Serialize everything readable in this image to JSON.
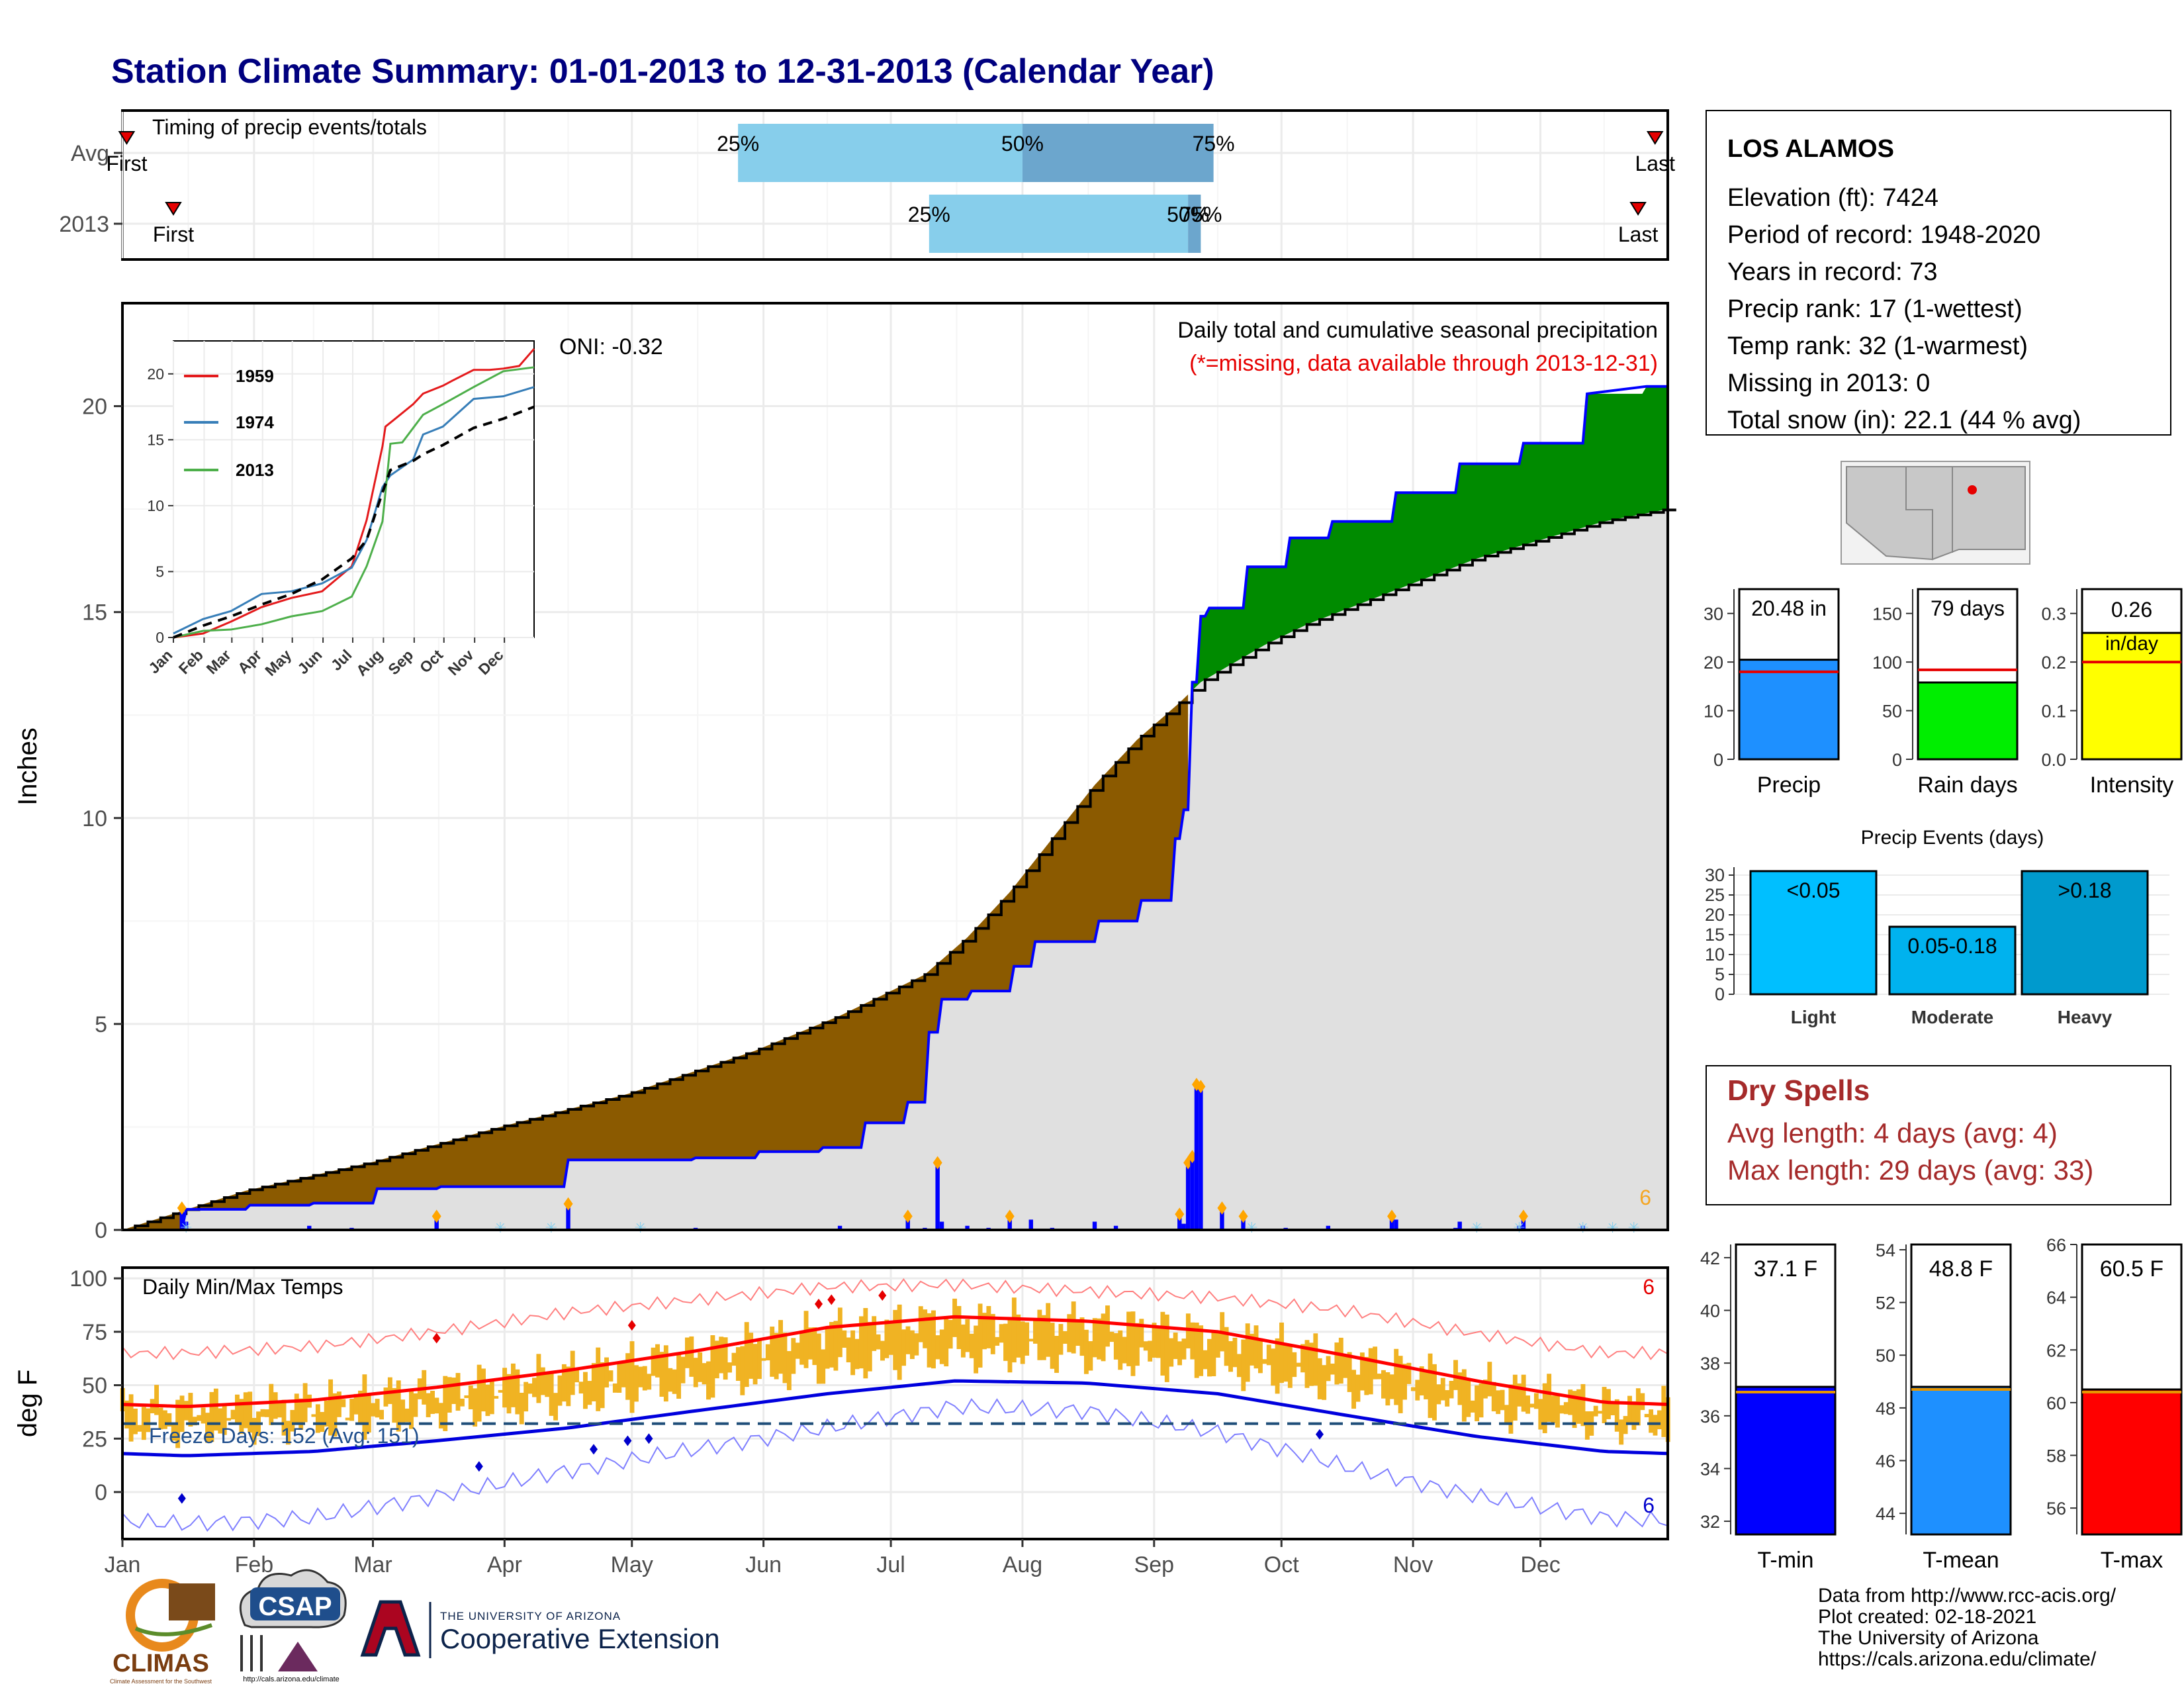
{
  "title": "Station Climate Summary: 01-01-2013 to 12-31-2013 (Calendar Year)",
  "months": [
    "Jan",
    "Feb",
    "Mar",
    "Apr",
    "May",
    "Jun",
    "Jul",
    "Aug",
    "Sep",
    "Oct",
    "Nov",
    "Dec"
  ],
  "timing": {
    "label": "Timing of precip events/totals",
    "rows": [
      "Avg",
      "2013"
    ],
    "first_label": "First",
    "last_label": "Last",
    "avg": {
      "first_doy": 2,
      "q25_doy": 146,
      "q50_doy": 213,
      "q75_doy": 258,
      "last_doy": 362
    },
    "y2013": {
      "first_doy": 13,
      "q25_doy": 191,
      "q50_doy": 252,
      "q75_doy": 255,
      "last_doy": 358
    },
    "q_labels": [
      "25%",
      "50%",
      "75%"
    ]
  },
  "precip_panel": {
    "ylabel": "Inches",
    "oni": "ONI: -0.32",
    "note1": "Daily total and cumulative seasonal precipitation",
    "note2": "(*=missing, data available through 2013-12-31)",
    "snow_count": "6",
    "yticks": [
      0,
      5,
      10,
      15,
      20
    ]
  },
  "inset": {
    "legend": [
      "1959",
      "1974",
      "2013"
    ],
    "legend_colors": [
      "#e41a1c",
      "#377eb8",
      "#4daf4a"
    ],
    "yticks": [
      0,
      5,
      10,
      15,
      20
    ]
  },
  "temp_panel": {
    "ylabel": "deg F",
    "label": "Daily Min/Max Temps",
    "freeze": "Freeze Days: 152 (Avg: 151)",
    "count_high": "6",
    "count_low": "6",
    "yticks": [
      0,
      25,
      50,
      75,
      100
    ]
  },
  "station": {
    "name": "LOS ALAMOS",
    "lines": [
      "Elevation (ft): 7424",
      "Period of record: 1948-2020",
      "Years in record: 73",
      "Precip rank: 17 (1-wettest)",
      "Temp rank: 32 (1-warmest)",
      "Missing in 2013: 0",
      "Total snow (in): 22.1 (44 % avg)"
    ]
  },
  "bar_panels": [
    {
      "label": "Precip",
      "value_text": "20.48 in",
      "value": 20.48,
      "avg": 18.0,
      "ymax": 35,
      "ticks": [
        0,
        10,
        20,
        30
      ],
      "color": "#1e90ff"
    },
    {
      "label": "Rain days",
      "value_text": "79 days",
      "value": 79,
      "avg": 92,
      "ymax": 175,
      "ticks": [
        0,
        50,
        100,
        150
      ],
      "color": "#00ee00"
    },
    {
      "label": "Intensity",
      "value_text": "0.26 in/day",
      "value": 0.26,
      "avg": 0.2,
      "ymax": 0.35,
      "ticks": [
        "0.0",
        "0.1",
        "0.2",
        "0.3"
      ],
      "color": "#ffff00"
    }
  ],
  "precip_events": {
    "title": "Precip Events (days)",
    "categories": [
      "Light",
      "Moderate",
      "Heavy"
    ],
    "labels": [
      "<0.05",
      "0.05-0.18",
      ">0.18"
    ],
    "values": [
      31,
      17,
      31
    ],
    "colors": [
      "#00bfff",
      "#00b2ee",
      "#009acd"
    ],
    "yticks": [
      0,
      5,
      10,
      15,
      20,
      25,
      30
    ]
  },
  "dry_spells": {
    "title": "Dry Spells",
    "avg": "Avg length: 4 days (avg: 4)",
    "max": "Max length: 29 days (avg: 33)"
  },
  "temp_bars": [
    {
      "label": "T-min",
      "value_text": "37.1 F",
      "value": 37.1,
      "avg": 36.9,
      "ymin": 31.5,
      "ymax": 42.5,
      "ticks": [
        32,
        34,
        36,
        38,
        40,
        42
      ],
      "color": "#0000ff"
    },
    {
      "label": "T-mean",
      "value_text": "48.8 F",
      "value": 48.8,
      "avg": 48.7,
      "ymin": 43.2,
      "ymax": 54.2,
      "ticks": [
        44,
        46,
        48,
        50,
        52,
        54
      ],
      "color": "#1e90ff"
    },
    {
      "label": "T-max",
      "value_text": "60.5 F",
      "value": 60.5,
      "avg": 60.4,
      "ymin": 55.0,
      "ymax": 66.0,
      "ticks": [
        56,
        58,
        60,
        62,
        64,
        66
      ],
      "color": "#ff0000"
    }
  ],
  "footer": [
    "Data from http://www.rcc-acis.org/",
    "Plot created: 02-18-2021",
    "The University of Arizona",
    "https://cals.arizona.edu/climate/"
  ],
  "logos": {
    "climas": "CLIMAS",
    "climas_sub": "Climate Assessment for the Southwest",
    "csap": "CSAP",
    "csap_sub": "http://cals.arizona.edu/climate",
    "ua_line1": "THE UNIVERSITY OF ARIZONA",
    "ua_line2": "Cooperative Extension"
  },
  "chart_data": {
    "type": "area",
    "title": "Daily total and cumulative seasonal precipitation",
    "ylabel": "Inches",
    "ylim": [
      0,
      22.5
    ],
    "x_axis": "day of year 2013",
    "series": [
      {
        "name": "2013 cumulative",
        "x": [
          1,
          15,
          16,
          30,
          31,
          45,
          46,
          60,
          61,
          75,
          76,
          105,
          106,
          135,
          136,
          150,
          151,
          165,
          166,
          175,
          176,
          185,
          186,
          190,
          191,
          193,
          194,
          200,
          201,
          210,
          211,
          215,
          216,
          230,
          231,
          240,
          241,
          248,
          249,
          250,
          251,
          252,
          253,
          254,
          255,
          256,
          257,
          265,
          266,
          275,
          276,
          285,
          286,
          300,
          301,
          315,
          316,
          330,
          331,
          345,
          346,
          360,
          365
        ],
        "y": [
          0,
          0,
          0.5,
          0.5,
          0.6,
          0.6,
          0.65,
          0.65,
          1.0,
          1.0,
          1.05,
          1.05,
          1.7,
          1.7,
          1.75,
          1.75,
          1.9,
          1.9,
          2.0,
          2.0,
          2.6,
          2.6,
          3.1,
          3.1,
          4.8,
          4.8,
          5.6,
          5.6,
          5.8,
          5.8,
          6.4,
          6.4,
          7.0,
          7.0,
          7.5,
          7.5,
          8.0,
          8.0,
          9.5,
          9.5,
          10.2,
          10.2,
          13.3,
          13.3,
          14.9,
          14.9,
          15.1,
          15.1,
          16.1,
          16.1,
          16.8,
          16.8,
          17.2,
          17.2,
          17.9,
          17.9,
          18.6,
          18.6,
          19.1,
          19.1,
          20.3,
          20.48,
          20.48
        ]
      },
      {
        "name": "Average cumulative",
        "x": [
          1,
          30,
          60,
          90,
          120,
          150,
          170,
          190,
          200,
          210,
          220,
          230,
          240,
          250,
          255,
          260,
          270,
          280,
          290,
          300,
          310,
          320,
          330,
          340,
          350,
          365
        ],
        "y": [
          0,
          0.95,
          1.65,
          2.5,
          3.3,
          4.35,
          5.2,
          6.2,
          7.1,
          8.2,
          9.5,
          10.8,
          11.9,
          12.8,
          13.3,
          13.6,
          14.2,
          14.7,
          15.1,
          15.5,
          15.9,
          16.3,
          16.6,
          16.9,
          17.2,
          17.5
        ]
      }
    ],
    "daily_precip": {
      "x": [
        15,
        16,
        45,
        55,
        75,
        106,
        136,
        170,
        186,
        190,
        193,
        194,
        200,
        205,
        210,
        215,
        220,
        230,
        235,
        250,
        251,
        252,
        253,
        254,
        255,
        260,
        265,
        275,
        285,
        300,
        301,
        315,
        316,
        330,
        331,
        345
      ],
      "y": [
        0.5,
        0.2,
        0.1,
        0.05,
        0.3,
        0.6,
        0.05,
        0.1,
        0.3,
        0.05,
        1.6,
        0.2,
        0.1,
        0.05,
        0.3,
        0.25,
        0.05,
        0.2,
        0.1,
        0.35,
        0.15,
        1.6,
        1.75,
        3.5,
        3.45,
        0.5,
        0.3,
        0.05,
        0.1,
        0.3,
        0.25,
        0.05,
        0.2,
        0.1,
        0.3,
        0.1
      ]
    },
    "inset_series": [
      {
        "name": "1959",
        "x": [
          1,
          31,
          59,
          90,
          120,
          151,
          181,
          196,
          212,
          215,
          225,
          243,
          253,
          273,
          283,
          304,
          320,
          334,
          350,
          365
        ],
        "y": [
          0,
          0.3,
          1.2,
          2.3,
          3.0,
          3.5,
          5.4,
          8.9,
          14.5,
          16.0,
          16.6,
          17.7,
          18.5,
          19.1,
          19.5,
          20.3,
          20.3,
          20.4,
          20.6,
          21.9
        ]
      },
      {
        "name": "1974",
        "x": [
          1,
          31,
          59,
          90,
          120,
          151,
          181,
          196,
          212,
          220,
          243,
          253,
          273,
          304,
          334,
          365
        ],
        "y": [
          0.3,
          1.4,
          2.0,
          3.3,
          3.5,
          4.1,
          5.3,
          7.4,
          11.4,
          12.3,
          13.5,
          15.4,
          16.0,
          18.1,
          18.3,
          19.0
        ]
      },
      {
        "name": "2013",
        "x": [
          1,
          31,
          59,
          90,
          120,
          151,
          181,
          196,
          212,
          220,
          232,
          243,
          253,
          273,
          304,
          334,
          365
        ],
        "y": [
          0,
          0.5,
          0.6,
          1.0,
          1.6,
          2.0,
          3.1,
          5.4,
          8.8,
          14.7,
          14.8,
          15.9,
          16.9,
          17.7,
          19.0,
          20.2,
          20.5
        ]
      },
      {
        "name": "Average",
        "x": [
          1,
          31,
          59,
          90,
          120,
          151,
          181,
          196,
          212,
          220,
          243,
          253,
          273,
          304,
          334,
          365
        ],
        "y": [
          0,
          0.9,
          1.6,
          2.5,
          3.3,
          4.4,
          6.0,
          7.4,
          11.0,
          12.7,
          13.4,
          13.9,
          14.6,
          15.9,
          16.6,
          17.5
        ]
      }
    ],
    "temperature": {
      "avg_max_monthly": [
        40,
        43,
        49,
        57,
        66,
        77,
        82,
        80,
        75,
        64,
        52,
        42
      ],
      "avg_min_monthly": [
        17,
        19,
        24,
        30,
        38,
        46,
        52,
        51,
        46,
        36,
        26,
        19
      ],
      "record_high_monthly": [
        65,
        68,
        75,
        84,
        90,
        96,
        97,
        94,
        91,
        85,
        74,
        65
      ],
      "record_low_monthly": [
        -15,
        -12,
        -2,
        10,
        20,
        30,
        40,
        38,
        28,
        12,
        -2,
        -12
      ],
      "freeze_line": 32
    }
  }
}
